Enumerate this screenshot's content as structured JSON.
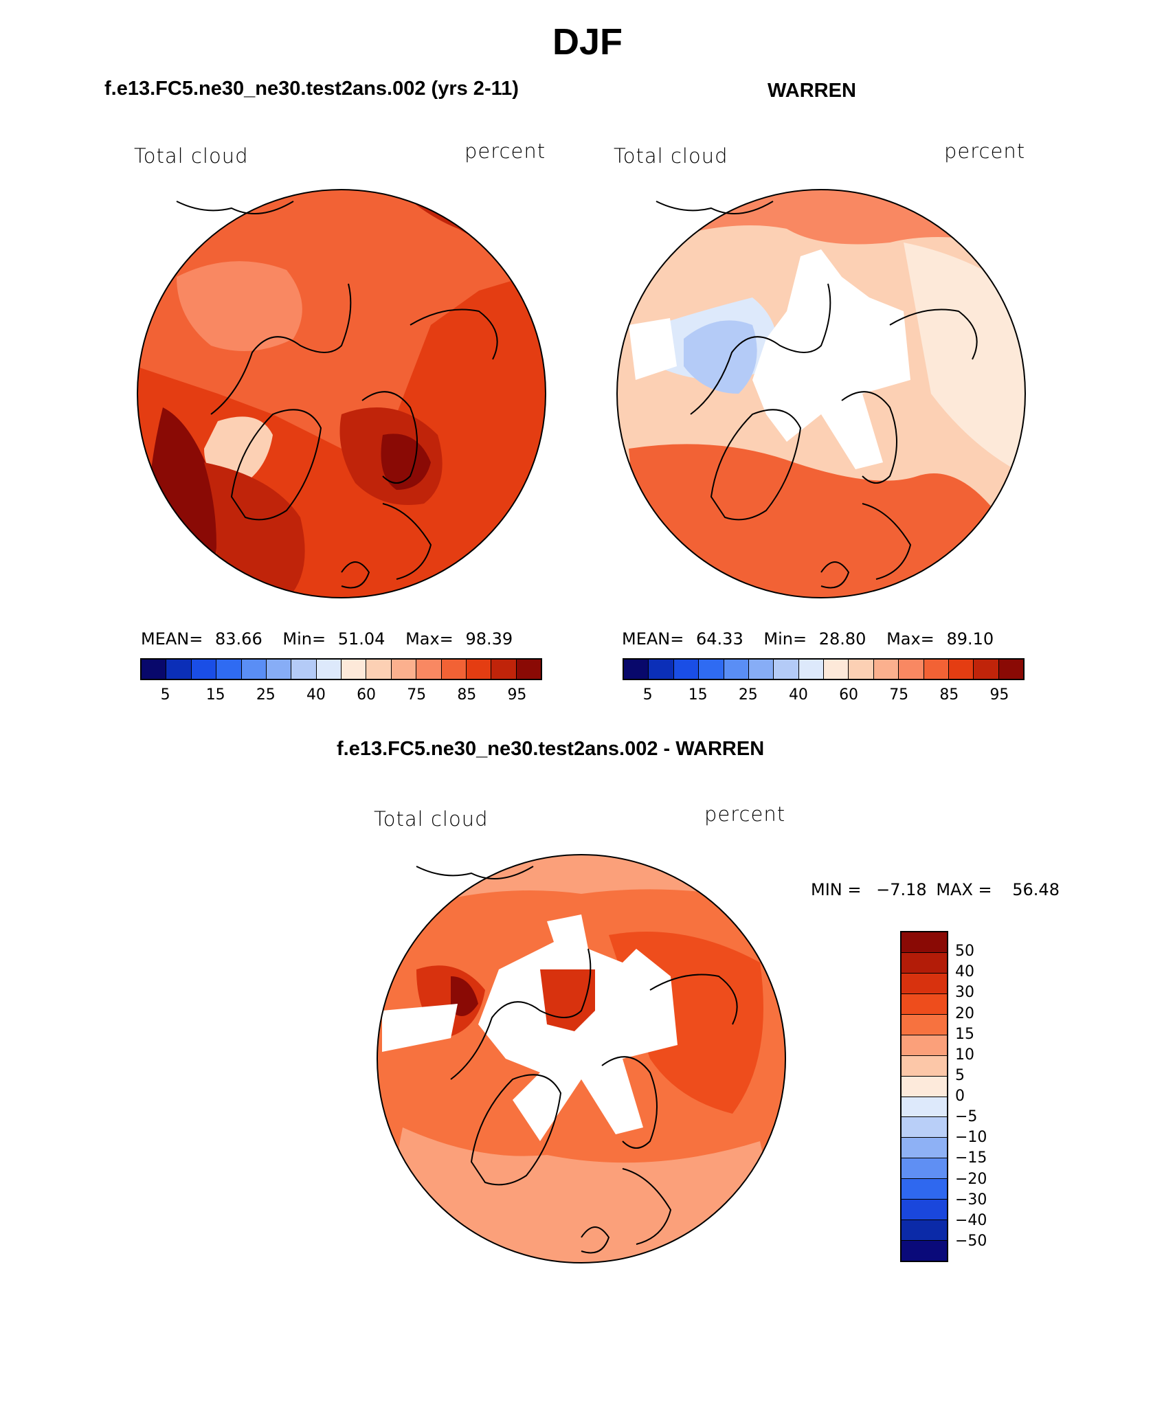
{
  "page": {
    "title": "DJF",
    "panel_left_title": "f.e13.FC5.ne30_ne30.test2ans.002 (yrs 2-11)",
    "panel_right_title": "WARREN",
    "panel_bottom_title": "f.e13.FC5.ne30_ne30.test2ans.002 - WARREN"
  },
  "chart_data": [
    {
      "type": "heatmap",
      "projection": "polar stereographic (north pole)",
      "title": "f.e13.FC5.ne30_ne30.test2ans.002 (yrs 2-11)",
      "variable": "Total cloud",
      "units": "percent",
      "stats": {
        "mean_label": "MEAN=",
        "mean": "83.66",
        "min_label": "Min=",
        "min": "51.04",
        "max_label": "Max=",
        "max": "98.39"
      },
      "contour_levels": [
        5,
        10,
        15,
        20,
        25,
        30,
        40,
        50,
        60,
        70,
        75,
        80,
        85,
        90,
        95
      ],
      "tick_labels": [
        "5",
        "15",
        "25",
        "40",
        "60",
        "75",
        "85",
        "95"
      ],
      "colors": [
        "#08086b",
        "#0b2fb8",
        "#1a4ee6",
        "#2f6bf2",
        "#5a8ef5",
        "#87adf6",
        "#b4cbf7",
        "#dde9fb",
        "#fde9d9",
        "#fcd0b4",
        "#fbb08e",
        "#f98862",
        "#f26235",
        "#e43d12",
        "#c0240a",
        "#8a0a05"
      ]
    },
    {
      "type": "heatmap",
      "projection": "polar stereographic (north pole)",
      "title": "WARREN",
      "variable": "Total cloud",
      "units": "percent",
      "stats": {
        "mean_label": "MEAN=",
        "mean": "64.33",
        "min_label": "Min=",
        "min": "28.80",
        "max_label": "Max=",
        "max": "89.10"
      },
      "contour_levels": [
        5,
        10,
        15,
        20,
        25,
        30,
        40,
        50,
        60,
        70,
        75,
        80,
        85,
        90,
        95
      ],
      "tick_labels": [
        "5",
        "15",
        "25",
        "40",
        "60",
        "75",
        "85",
        "95"
      ],
      "colors": [
        "#08086b",
        "#0b2fb8",
        "#1a4ee6",
        "#2f6bf2",
        "#5a8ef5",
        "#87adf6",
        "#b4cbf7",
        "#dde9fb",
        "#fde9d9",
        "#fcd0b4",
        "#fbb08e",
        "#f98862",
        "#f26235",
        "#e43d12",
        "#c0240a",
        "#8a0a05"
      ]
    },
    {
      "type": "heatmap",
      "projection": "polar stereographic (north pole)",
      "title": "f.e13.FC5.ne30_ne30.test2ans.002 - WARREN",
      "variable": "Total cloud",
      "units": "percent",
      "stats": {
        "min_label": "MIN =",
        "min": "−7.18",
        "max_label": "MAX =",
        "max": "56.48"
      },
      "tick_labels": [
        "50",
        "40",
        "30",
        "20",
        "15",
        "10",
        "5",
        "0",
        "−5",
        "−10",
        "−15",
        "−20",
        "−30",
        "−40",
        "−50"
      ],
      "colors": [
        "#8a0a05",
        "#b31c08",
        "#d8320e",
        "#ee4d1c",
        "#f7723f",
        "#fba07a",
        "#fcc7a8",
        "#fdeadb",
        "#dde9fb",
        "#b9cff8",
        "#8eb1f5",
        "#5f8ff3",
        "#2f68ef",
        "#1a47dc",
        "#0b2aa8",
        "#0a0a7a"
      ]
    }
  ]
}
